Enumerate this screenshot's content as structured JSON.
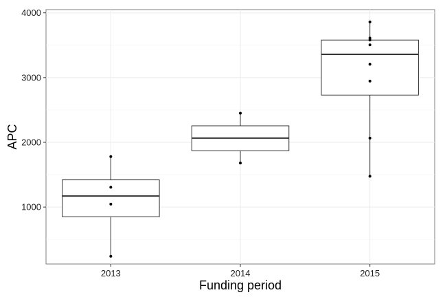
{
  "chart_data": {
    "type": "box",
    "title": "",
    "xlabel": "Funding period",
    "ylabel": "APC",
    "categories": [
      "2013",
      "2014",
      "2015"
    ],
    "ylim": [
      120,
      4050
    ],
    "yticks": [
      1000,
      2000,
      3000,
      4000
    ],
    "grid": true,
    "boxes": [
      {
        "category": "2013",
        "whisker_low": 240,
        "q1": 850,
        "median": 1170,
        "q3": 1420,
        "whisker_high": 1780
      },
      {
        "category": "2014",
        "whisker_low": 1680,
        "q1": 1870,
        "median": 2065,
        "q3": 2255,
        "whisker_high": 2450
      },
      {
        "category": "2015",
        "whisker_low": 1475,
        "q1": 2730,
        "median": 3360,
        "q3": 3580,
        "whisker_high": 3860
      }
    ],
    "points": [
      {
        "category": "2013",
        "values": [
          1780,
          1305,
          1045,
          240
        ]
      },
      {
        "category": "2014",
        "values": [
          2450,
          1680
        ]
      },
      {
        "category": "2015",
        "values": [
          3860,
          3610,
          3580,
          3505,
          3205,
          2945,
          2065,
          1475
        ]
      }
    ]
  }
}
